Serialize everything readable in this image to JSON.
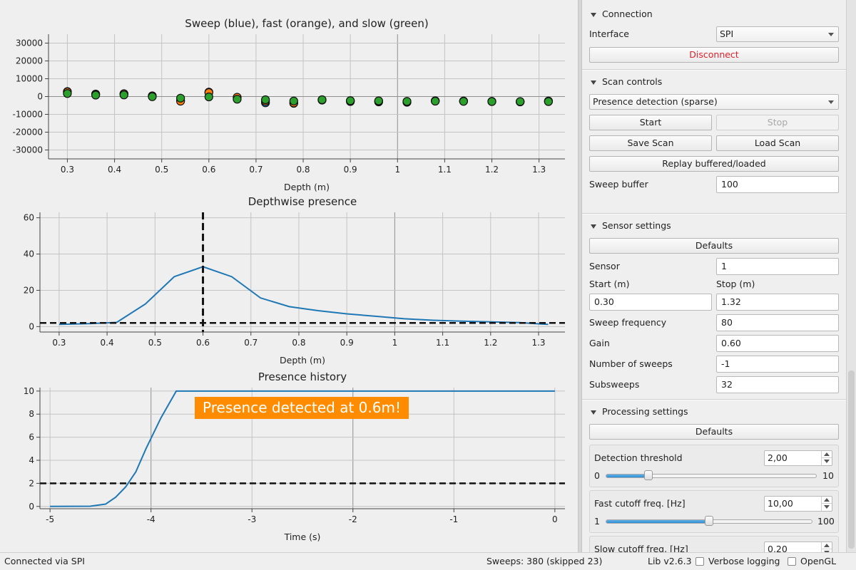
{
  "plots": {
    "sweep": {
      "title": "Sweep (blue), fast (orange), and slow (green)",
      "xlabel": "Depth (m)",
      "xlim": [
        0.26,
        1.355
      ],
      "ylim": [
        -35000,
        35000
      ],
      "xticks": [
        0.3,
        0.4,
        0.5,
        0.6,
        0.7,
        0.8,
        0.9,
        1,
        1.1,
        1.2,
        1.3
      ],
      "xtick_labels": [
        "0.3",
        "0.4",
        "0.5",
        "0.6",
        "0.7",
        "0.8",
        "0.9",
        "1",
        "1.1",
        "1.2",
        "1.3"
      ],
      "yticks": [
        -30000,
        -20000,
        -10000,
        0,
        10000,
        20000,
        30000
      ],
      "ytick_labels": [
        "-30000",
        "-20000",
        "-10000",
        "0",
        "10000",
        "20000",
        "30000"
      ],
      "depths": [
        0.3,
        0.36,
        0.42,
        0.48,
        0.54,
        0.6,
        0.66,
        0.72,
        0.78,
        0.84,
        0.9,
        0.96,
        1.02,
        1.08,
        1.14,
        1.2,
        1.26,
        1.32
      ],
      "series": [
        {
          "name": "sweep",
          "color": "#1f77b4",
          "values": [
            2800,
            1400,
            1600,
            300,
            -2200,
            2500,
            -600,
            -3500,
            -3800,
            -1800,
            -2800,
            -3000,
            -3200,
            -2400,
            -2600,
            -2800,
            -3000,
            -2500
          ]
        },
        {
          "name": "fast",
          "color": "#ff7f0e",
          "values": [
            2600,
            1300,
            1500,
            400,
            -2600,
            2200,
            -400,
            -2600,
            -3600,
            -2000,
            -2400,
            -2700,
            -3000,
            -2400,
            -2500,
            -2700,
            -2900,
            -2800
          ]
        },
        {
          "name": "slow",
          "color": "#2ca02c",
          "values": [
            1700,
            800,
            900,
            -100,
            -900,
            -200,
            -1500,
            -1800,
            -2500,
            -1800,
            -2300,
            -2400,
            -2700,
            -2600,
            -2700,
            -2800,
            -2800,
            -2800
          ]
        }
      ]
    },
    "depthwise": {
      "title": "Depthwise presence",
      "xlabel": "Depth (m)",
      "xlim": [
        0.26,
        1.355
      ],
      "ylim": [
        -3,
        63
      ],
      "xticks": [
        0.3,
        0.4,
        0.5,
        0.6,
        0.7,
        0.8,
        0.9,
        1,
        1.1,
        1.2,
        1.3
      ],
      "xtick_labels": [
        "0.3",
        "0.4",
        "0.5",
        "0.6",
        "0.7",
        "0.8",
        "0.9",
        "1",
        "1.1",
        "1.2",
        "1.3"
      ],
      "yticks": [
        0,
        20,
        40,
        60
      ],
      "ytick_labels": [
        "0",
        "20",
        "40",
        "60"
      ],
      "x": [
        0.3,
        0.36,
        0.42,
        0.48,
        0.54,
        0.6,
        0.66,
        0.72,
        0.78,
        0.84,
        0.9,
        0.96,
        1.02,
        1.08,
        1.14,
        1.2,
        1.26,
        1.32
      ],
      "y": [
        1.2,
        1.6,
        2.3,
        12.5,
        27.5,
        33.0,
        27.5,
        15.8,
        11.0,
        8.8,
        7.0,
        5.7,
        4.3,
        3.5,
        3.0,
        2.6,
        2.2,
        1.2
      ],
      "threshold": 2.0,
      "marker_depth": 0.6
    },
    "history": {
      "title": "Presence history",
      "xlabel": "Time (s)",
      "xlim": [
        -5.1,
        0.1
      ],
      "ylim": [
        -0.2,
        10.3
      ],
      "xticks": [
        -5,
        -4,
        -3,
        -2,
        -1,
        0
      ],
      "xtick_labels": [
        "-5",
        "-4",
        "-3",
        "-2",
        "-1",
        "0"
      ],
      "yticks": [
        0,
        2,
        4,
        6,
        8,
        10
      ],
      "ytick_labels": [
        "0",
        "2",
        "4",
        "6",
        "8",
        "10"
      ],
      "x": [
        -5.0,
        -4.6,
        -4.45,
        -4.35,
        -4.25,
        -4.15,
        -4.05,
        -3.9,
        -3.75,
        -3.72,
        -2.0,
        0.0
      ],
      "y": [
        0.0,
        0.02,
        0.2,
        0.8,
        1.7,
        3.0,
        5.0,
        7.7,
        10.0,
        10.0,
        10.0,
        10.0
      ],
      "threshold": 2.0,
      "banner": "Presence detected at 0.6m!"
    }
  },
  "panel": {
    "connection": {
      "title": "Connection",
      "interface_label": "Interface",
      "interface_value": "SPI",
      "disconnect_label": "Disconnect"
    },
    "scan": {
      "title": "Scan controls",
      "mode_value": "Presence detection (sparse)",
      "start_label": "Start",
      "stop_label": "Stop",
      "save_label": "Save Scan",
      "load_label": "Load Scan",
      "replay_label": "Replay buffered/loaded",
      "buffer_label": "Sweep buffer",
      "buffer_value": "100"
    },
    "sensor": {
      "title": "Sensor settings",
      "defaults_label": "Defaults",
      "sensor_label": "Sensor",
      "sensor_value": "1",
      "start_label": "Start (m)",
      "stop_label": "Stop (m)",
      "start_value": "0.30",
      "stop_value": "1.32",
      "freq_label": "Sweep frequency",
      "freq_value": "80",
      "gain_label": "Gain",
      "gain_value": "0.60",
      "nsweeps_label": "Number of sweeps",
      "nsweeps_value": "-1",
      "subsweeps_label": "Subsweeps",
      "subsweeps_value": "32"
    },
    "processing": {
      "title": "Processing settings",
      "defaults_label": "Defaults",
      "threshold_label": "Detection threshold",
      "threshold_value": "2,00",
      "threshold_min": "0",
      "threshold_max": "10",
      "threshold_fraction": 0.2,
      "fast_label": "Fast cutoff freq. [Hz]",
      "fast_value": "10,00",
      "fast_min": "1",
      "fast_max": "100",
      "fast_fraction": 0.5,
      "slow_label": "Slow cutoff freq. [Hz]",
      "slow_value": "0,20"
    }
  },
  "status": {
    "connected": "Connected via SPI",
    "sweeps": "Sweeps: 380 (skipped 23)",
    "lib": "Lib v2.6.3",
    "verbose_label": "Verbose logging",
    "opengl_label": "OpenGL"
  },
  "colors": {
    "line": "#1f77b4",
    "banner": "#ff8c00",
    "disconnect": "#e0212b",
    "slider_fill": "#2f8ed3"
  }
}
